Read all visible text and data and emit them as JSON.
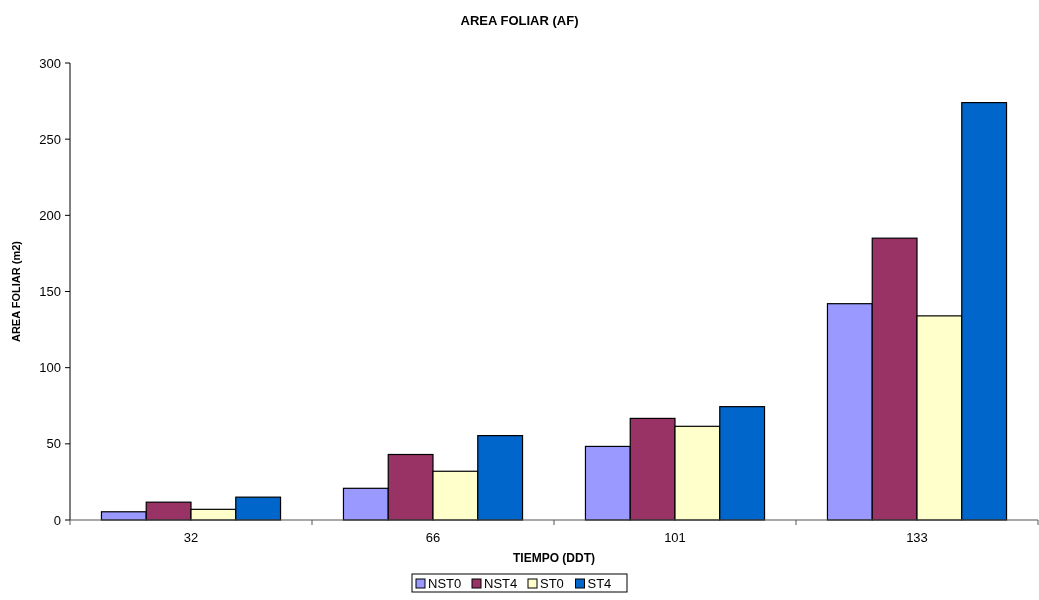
{
  "chart_data": {
    "type": "bar",
    "title": "AREA FOLIAR (AF)",
    "xlabel": "TIEMPO (DDT)",
    "ylabel": "AREA FOLIAR (m2)",
    "categories": [
      "32",
      "66",
      "101",
      "133"
    ],
    "series": [
      {
        "name": "NST0",
        "color": "#9999ff",
        "values": [
          5.4,
          20.8,
          48.3,
          142
        ]
      },
      {
        "name": "NST4",
        "color": "#993366",
        "values": [
          11.7,
          43,
          66.7,
          185
        ]
      },
      {
        "name": "ST0",
        "color": "#ffffcc",
        "values": [
          7,
          32,
          61.5,
          134
        ]
      },
      {
        "name": "ST4",
        "color": "#0066cc",
        "values": [
          15,
          55.4,
          74.4,
          274
        ]
      }
    ],
    "ylim": [
      0,
      300
    ],
    "yticks": [
      0,
      50,
      100,
      150,
      200,
      250,
      300
    ],
    "grid": false,
    "legend": "bottom"
  }
}
